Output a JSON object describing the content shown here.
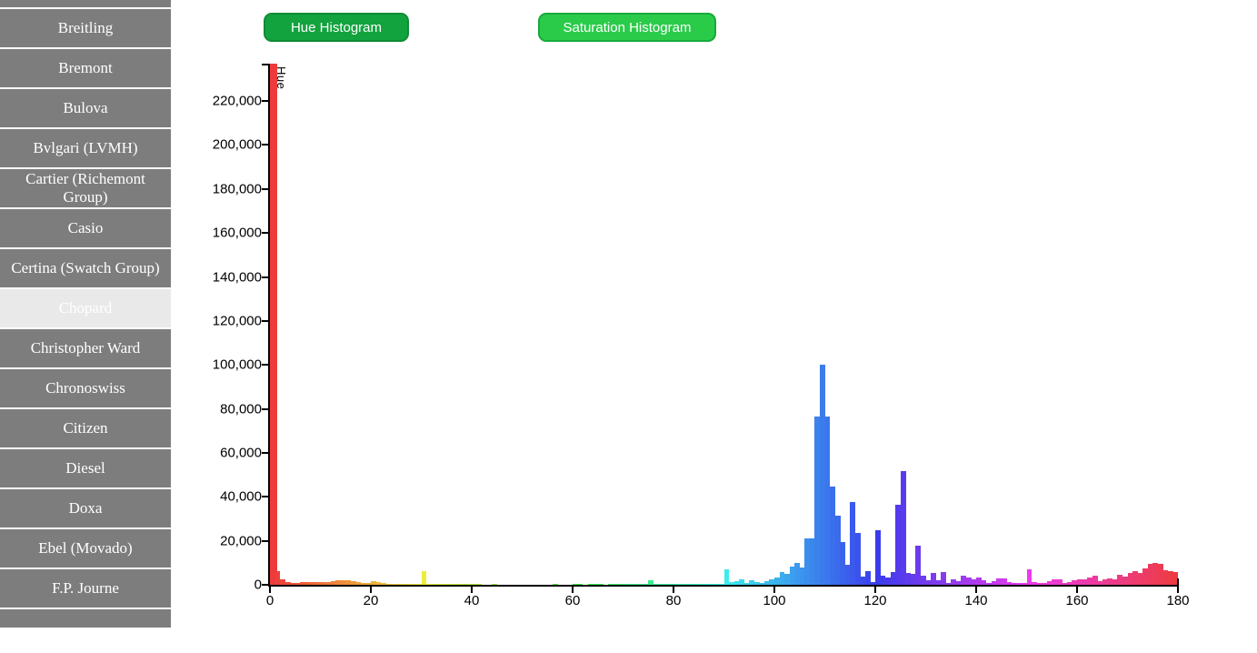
{
  "sidebar": {
    "items": [
      {
        "label": "",
        "partial": "top"
      },
      {
        "label": "Breitling"
      },
      {
        "label": "Bremont"
      },
      {
        "label": "Bulova"
      },
      {
        "label": "Bvlgari (LVMH)"
      },
      {
        "label": "Cartier (Richemont Group)"
      },
      {
        "label": "Casio"
      },
      {
        "label": "Certina (Swatch Group)"
      },
      {
        "label": "Chopard",
        "selected": true
      },
      {
        "label": "Christopher Ward"
      },
      {
        "label": "Chronoswiss"
      },
      {
        "label": "Citizen"
      },
      {
        "label": "Diesel"
      },
      {
        "label": "Doxa"
      },
      {
        "label": "Ebel (Movado)"
      },
      {
        "label": "F.P. Journe"
      },
      {
        "label": "",
        "partial": "bottom"
      }
    ]
  },
  "toolbar": {
    "hue_button_label": "Hue Histogram",
    "saturation_button_label": "Saturation Histogram"
  },
  "colors": {
    "sidebar_item_bg": "#7d7d7d",
    "sidebar_selected_bg": "#e9e9e9",
    "hue_button_bg": "#12a33e",
    "saturation_button_bg": "#2bcb4a",
    "axis": "#000000"
  },
  "chart_data": {
    "type": "bar",
    "title": "",
    "ylabel": "Hue",
    "xlabel": "",
    "xlim": [
      0,
      180
    ],
    "ylim": [
      0,
      237000
    ],
    "bin_width": 1,
    "grid": false,
    "legend": "none",
    "x_ticks": [
      0,
      20,
      40,
      60,
      80,
      100,
      120,
      140,
      160,
      180
    ],
    "y_tick_values": [
      0,
      20000,
      40000,
      60000,
      80000,
      100000,
      120000,
      140000,
      160000,
      180000,
      200000,
      220000
    ],
    "color_rule": "each bar colored hsl(bin*2deg, 83%, 58%) — bar hue matches its x value (OpenCV 0-180 hue scale)",
    "note": "bar at hue 0 exceeds the y-axis range and is clipped at the plot top (> 237,000)",
    "values": [
      237000,
      6300,
      2300,
      1300,
      1000,
      1000,
      1100,
      1100,
      1200,
      1300,
      1400,
      1400,
      1500,
      2100,
      2200,
      1900,
      1500,
      1200,
      1000,
      850,
      1700,
      1100,
      700,
      550,
      550,
      420,
      380,
      350,
      350,
      400,
      6100,
      500,
      380,
      320,
      300,
      350,
      300,
      260,
      240,
      220,
      260,
      220,
      200,
      200,
      220,
      200,
      180,
      200,
      180,
      170,
      200,
      180,
      170,
      200,
      180,
      200,
      220,
      200,
      180,
      200,
      250,
      220,
      200,
      220,
      250,
      220,
      200,
      220,
      250,
      280,
      300,
      280,
      300,
      350,
      400,
      2200,
      550,
      400,
      350,
      300,
      420,
      380,
      320,
      300,
      280,
      260,
      280,
      320,
      350,
      450,
      7000,
      1200,
      1500,
      2600,
      1000,
      1900,
      1200,
      800,
      1500,
      2500,
      3300,
      5900,
      5100,
      8100,
      9800,
      7900,
      21000,
      21200,
      76500,
      100200,
      76500,
      44700,
      31600,
      19600,
      9100,
      37500,
      23500,
      3700,
      6100,
      1200,
      25000,
      4000,
      3500,
      6000,
      36400,
      51700,
      5500,
      5000,
      17800,
      4000,
      2000,
      5500,
      2000,
      6000,
      1000,
      2600,
      1500,
      4000,
      3300,
      2600,
      3300,
      2000,
      1000,
      1700,
      2900,
      2900,
      1200,
      800,
      700,
      800,
      7000,
      1200,
      800,
      1000,
      1700,
      2300,
      2300,
      1000,
      1200,
      1900,
      2600,
      2300,
      3300,
      4300,
      1500,
      2300,
      2900,
      2300,
      4700,
      3700,
      5400,
      6100,
      5400,
      7400,
      9500,
      9800,
      9500,
      6800,
      6100,
      5700
    ]
  }
}
